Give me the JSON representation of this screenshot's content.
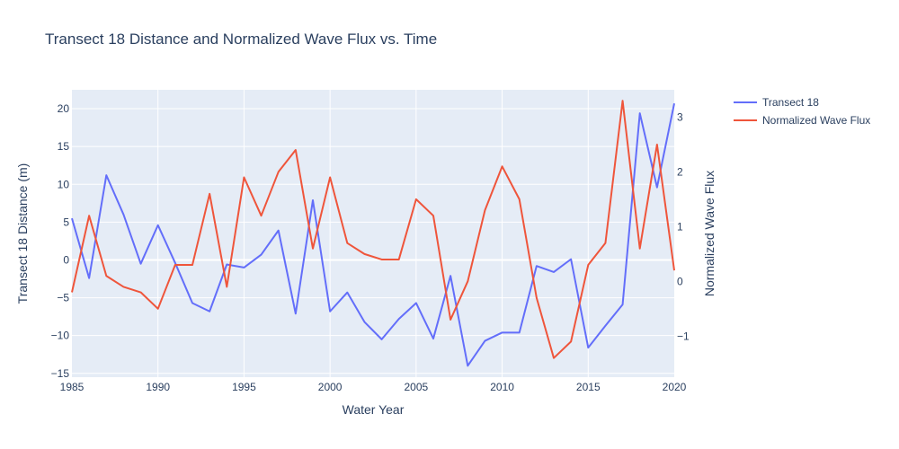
{
  "chart_data": {
    "type": "line",
    "title": "Transect 18 Distance and Normalized Wave Flux vs. Time",
    "xlabel": "Water Year",
    "ylabel": "Transect 18 Distance (m)",
    "y2label": "Normalized Wave Flux",
    "xlim": [
      1985,
      2020
    ],
    "ylim": [
      -15.5,
      22.5
    ],
    "y2lim": [
      -1.75,
      3.5
    ],
    "x_ticks": [
      1985,
      1990,
      1995,
      2000,
      2005,
      2010,
      2015,
      2020
    ],
    "y_ticks": [
      -15,
      -10,
      -5,
      0,
      5,
      10,
      15,
      20
    ],
    "y2_ticks": [
      -1,
      0,
      1,
      2,
      3
    ],
    "grid": true,
    "legend_position": "top-right",
    "x": [
      1985,
      1986,
      1987,
      1988,
      1989,
      1990,
      1991,
      1992,
      1993,
      1994,
      1995,
      1996,
      1997,
      1998,
      1999,
      2000,
      2001,
      2002,
      2003,
      2004,
      2005,
      2006,
      2007,
      2008,
      2009,
      2010,
      2011,
      2012,
      2013,
      2014,
      2015,
      2016,
      2017,
      2018,
      2019,
      2020
    ],
    "series": [
      {
        "name": "Transect 18",
        "axis": "y",
        "color": "#636efa",
        "values": [
          5.5,
          -2.4,
          11.2,
          6.0,
          -0.5,
          4.6,
          -0.4,
          -5.7,
          -6.8,
          -0.6,
          -1.0,
          0.7,
          3.9,
          -7.1,
          7.9,
          -6.8,
          -4.3,
          -8.2,
          -10.5,
          -7.8,
          -5.7,
          -10.4,
          -2.1,
          -14.0,
          -10.7,
          -9.6,
          -9.6,
          -0.8,
          -1.6,
          0.1,
          -11.6,
          -8.7,
          -5.9,
          19.4,
          9.6,
          20.7
        ]
      },
      {
        "name": "Normalized Wave Flux",
        "axis": "y2",
        "color": "#ef553b",
        "values": [
          -0.2,
          1.2,
          0.1,
          -0.1,
          -0.2,
          -0.5,
          0.3,
          0.3,
          1.6,
          -0.1,
          1.9,
          1.2,
          2.0,
          2.4,
          0.6,
          1.9,
          0.7,
          0.5,
          0.4,
          0.4,
          1.5,
          1.2,
          -0.7,
          0.0,
          1.3,
          2.1,
          1.5,
          -0.3,
          -1.4,
          -1.1,
          0.3,
          0.7,
          3.3,
          0.6,
          2.5,
          0.2
        ]
      }
    ]
  }
}
